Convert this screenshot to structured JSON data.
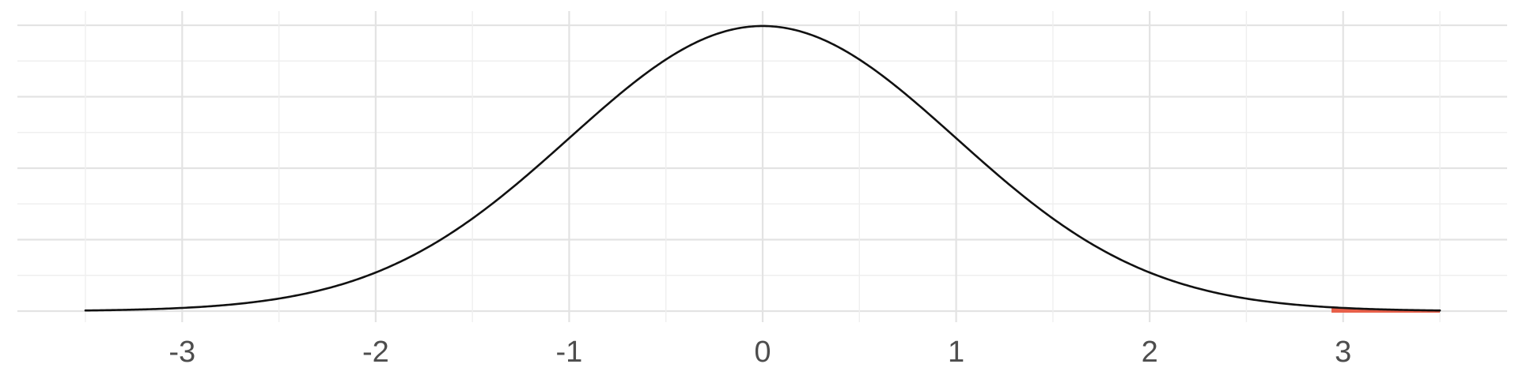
{
  "chart_data": {
    "type": "area",
    "title": "",
    "xlabel": "",
    "ylabel": "",
    "x_ticks": [
      -3,
      -2,
      -1,
      0,
      1,
      2,
      3
    ],
    "x_tick_labels": [
      "-3",
      "-2",
      "-1",
      "0",
      "1",
      "2",
      "3"
    ],
    "xlim": [
      -3.5,
      3.5
    ],
    "ylim": [
      0,
      0.4
    ],
    "y_tick_labels_shown": false,
    "grid": true,
    "legend": "none",
    "series": [
      {
        "kind": "density_curve",
        "distribution": "standard normal",
        "mean": 0,
        "sd": 1,
        "x": [
          -3.5,
          -3,
          -2.5,
          -2,
          -1.5,
          -1,
          -0.5,
          0,
          0.5,
          1,
          1.5,
          2,
          2.5,
          3,
          3.5
        ],
        "y": [
          0.0009,
          0.0044,
          0.0175,
          0.054,
          0.1295,
          0.242,
          0.3521,
          0.3989,
          0.3521,
          0.242,
          0.1295,
          0.054,
          0.0175,
          0.0044,
          0.0009
        ],
        "color": "#111111"
      },
      {
        "kind": "shaded_tail",
        "x_from": 2.94,
        "x_to": 3.5,
        "color": "#e8604a"
      }
    ]
  }
}
